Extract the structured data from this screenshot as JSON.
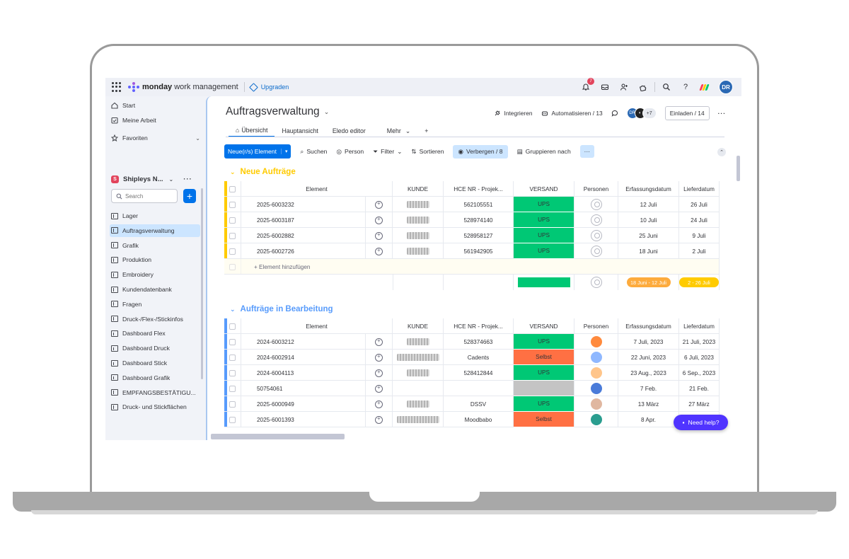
{
  "topbar": {
    "brand": "monday",
    "product": "work management",
    "upgrade": "Upgraden",
    "notification_count": "7",
    "user_initials": "DR"
  },
  "sidebar": {
    "start": "Start",
    "my_work": "Meine Arbeit",
    "favorites": "Favoriten",
    "workspace_badge": "S",
    "workspace": "Shipleys N...",
    "search_placeholder": "Search",
    "items": [
      {
        "label": "Lager",
        "icon": "board-icon"
      },
      {
        "label": "Auftragsverwaltung",
        "icon": "board-icon"
      },
      {
        "label": "Grafik",
        "icon": "board-icon"
      },
      {
        "label": "Produktion",
        "icon": "board-icon"
      },
      {
        "label": "Embroidery",
        "icon": "board-icon"
      },
      {
        "label": "Kundendatenbank",
        "icon": "board-icon"
      },
      {
        "label": "Fragen",
        "icon": "board-icon"
      },
      {
        "label": "Druck-/Flex-/Stickinfos",
        "icon": "board-icon"
      },
      {
        "label": "Dashboard Flex",
        "icon": "dashboard-icon"
      },
      {
        "label": "Dashboard Druck",
        "icon": "dashboard-icon"
      },
      {
        "label": "Dashboard Stick",
        "icon": "dashboard-icon"
      },
      {
        "label": "Dashboard Grafik",
        "icon": "dashboard-icon"
      },
      {
        "label": "EMPFANGSBESTÄTIGU...",
        "icon": "board-icon"
      },
      {
        "label": "Druck- und Stickflächen",
        "icon": "board-icon"
      }
    ]
  },
  "board": {
    "title": "Auftragsverwaltung",
    "integrate": "Integrieren",
    "automate": "Automatisieren / 13",
    "avatars_more": "+7",
    "invite": "Einladen / 14",
    "tabs": [
      "Übersicht",
      "Hauptansicht",
      "Eledo editor",
      "Mehr",
      "+"
    ],
    "toolbar": {
      "new_item": "Neue(r/s) Element",
      "search": "Suchen",
      "person": "Person",
      "filter": "Filter",
      "sort": "Sortieren",
      "hide": "Verbergen / 8",
      "group_by": "Gruppieren nach"
    }
  },
  "columns": [
    "Element",
    "KUNDE",
    "HCE NR - Projek...",
    "VERSAND",
    "Personen",
    "Erfassungsdatum",
    "Lieferdatum"
  ],
  "groups": [
    {
      "title": "Neue Aufträge",
      "color": "#ffcb00",
      "add_label": "+ Element hinzufügen",
      "summary_start_pill": "18 Juni - 12 Juli",
      "summary_end_pill": "2 - 26 Juli",
      "rows": [
        {
          "name": "2025-6003232",
          "hce": "562105551",
          "versand": "UPS",
          "versand_color": "#00c875",
          "erfassung": "12 Juli",
          "liefer": "26 Juli"
        },
        {
          "name": "2025-6003187",
          "hce": "528974140",
          "versand": "UPS",
          "versand_color": "#00c875",
          "erfassung": "10 Juli",
          "liefer": "24 Juli"
        },
        {
          "name": "2025-6002882",
          "hce": "528958127",
          "versand": "UPS",
          "versand_color": "#00c875",
          "erfassung": "25 Juni",
          "liefer": "9 Juli"
        },
        {
          "name": "2025-6002726",
          "hce": "561942905",
          "versand": "UPS",
          "versand_color": "#00c875",
          "erfassung": "18 Juni",
          "liefer": "2 Juli"
        }
      ]
    },
    {
      "title": "Aufträge in Bearbeitung",
      "color": "#579bfc",
      "rows": [
        {
          "name": "2024-6003212",
          "hce": "528374663",
          "versand": "UPS",
          "versand_color": "#00c875",
          "erfassung": "7 Juli, 2023",
          "liefer": "21 Juli, 2023"
        },
        {
          "name": "2024-6002914",
          "hce": "Cadents",
          "versand": "Selbst",
          "versand_color": "#ff7043",
          "erfassung": "22 Juni, 2023",
          "liefer": "6 Juli, 2023"
        },
        {
          "name": "2024-6004113",
          "hce": "528412844",
          "versand": "UPS",
          "versand_color": "#00c875",
          "erfassung": "23 Aug., 2023",
          "liefer": "6 Sep., 2023"
        },
        {
          "name": "50754061",
          "hce": "",
          "versand": "",
          "versand_color": "#c4c4c4",
          "erfassung": "7 Feb.",
          "liefer": "21 Feb."
        },
        {
          "name": "2025-6000949",
          "hce": "DSSV",
          "versand": "UPS",
          "versand_color": "#00c875",
          "erfassung": "13 März",
          "liefer": "27 März"
        },
        {
          "name": "2025-6001393",
          "hce": "Moodbabo",
          "versand": "Selbst",
          "versand_color": "#ff7043",
          "erfassung": "8 Apr.",
          "liefer": ""
        }
      ]
    }
  ],
  "help": "Need help?"
}
